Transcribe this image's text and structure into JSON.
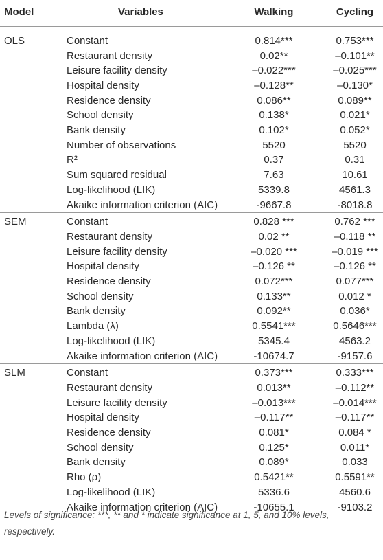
{
  "header": {
    "model": "Model",
    "variables": "Variables",
    "walking": "Walking",
    "cycling": "Cycling"
  },
  "groups": [
    {
      "model": "OLS",
      "rows": [
        [
          "Constant",
          "0.814***",
          "0.753***"
        ],
        [
          "Restaurant density",
          "0.02**",
          "–0.101**"
        ],
        [
          "Leisure facility density",
          "–0.022***",
          "–0.025***"
        ],
        [
          "Hospital density",
          "–0.128**",
          "–0.130*"
        ],
        [
          "Residence density",
          "0.086**",
          "0.089**"
        ],
        [
          "School density",
          "0.138*",
          "0.021*"
        ],
        [
          "Bank density",
          "0.102*",
          "0.052*"
        ],
        [
          "Number of observations",
          "5520",
          "5520"
        ],
        [
          "R²",
          "0.37",
          "0.31"
        ],
        [
          "Sum squared residual",
          "7.63",
          "10.61"
        ],
        [
          "Log-likelihood (LIK)",
          "5339.8",
          "4561.3"
        ],
        [
          "Akaike information criterion (AIC)",
          "-9667.8",
          "-8018.8"
        ]
      ]
    },
    {
      "model": "SEM",
      "rows": [
        [
          "Constant",
          "0.828 ***",
          "0.762 ***"
        ],
        [
          "Restaurant density",
          "0.02 **",
          "–0.118 **"
        ],
        [
          "Leisure facility density",
          "–0.020 ***",
          "–0.019 ***"
        ],
        [
          "Hospital density",
          "–0.126 **",
          "–0.126 **"
        ],
        [
          "Residence density",
          "0.072***",
          "0.077***"
        ],
        [
          "School density",
          "0.133**",
          "0.012 *"
        ],
        [
          "Bank density",
          "0.092**",
          "0.036*"
        ],
        [
          "Lambda (λ)",
          "0.5541***",
          "0.5646***"
        ],
        [
          "Log-likelihood (LIK)",
          "5345.4",
          "4563.2"
        ],
        [
          "Akaike information criterion (AIC)",
          "-10674.7",
          "-9157.6"
        ]
      ]
    },
    {
      "model": "SLM",
      "rows": [
        [
          "Constant",
          "0.373***",
          "0.333***"
        ],
        [
          "Restaurant density",
          "0.013**",
          "–0.112**"
        ],
        [
          "Leisure facility density",
          "–0.013***",
          "–0.014***"
        ],
        [
          "Hospital density",
          "–0.117**",
          "–0.117**"
        ],
        [
          "Residence density",
          "0.081*",
          "0.084 *"
        ],
        [
          "School density",
          "0.125*",
          "0.011*"
        ],
        [
          "Bank density",
          "0.089*",
          "0.033"
        ],
        [
          "Rho (ρ)",
          "0.5421**",
          "0.5591**"
        ],
        [
          "Log-likelihood (LIK)",
          "5336.6",
          "4560.6"
        ],
        [
          "Akaike information criterion (AIC)",
          "-10655.1",
          "-9103.2"
        ]
      ]
    }
  ],
  "footnote": "Levels of significance: ***, ** and * indicate significance at 1, 5, and 10% levels, respectively."
}
